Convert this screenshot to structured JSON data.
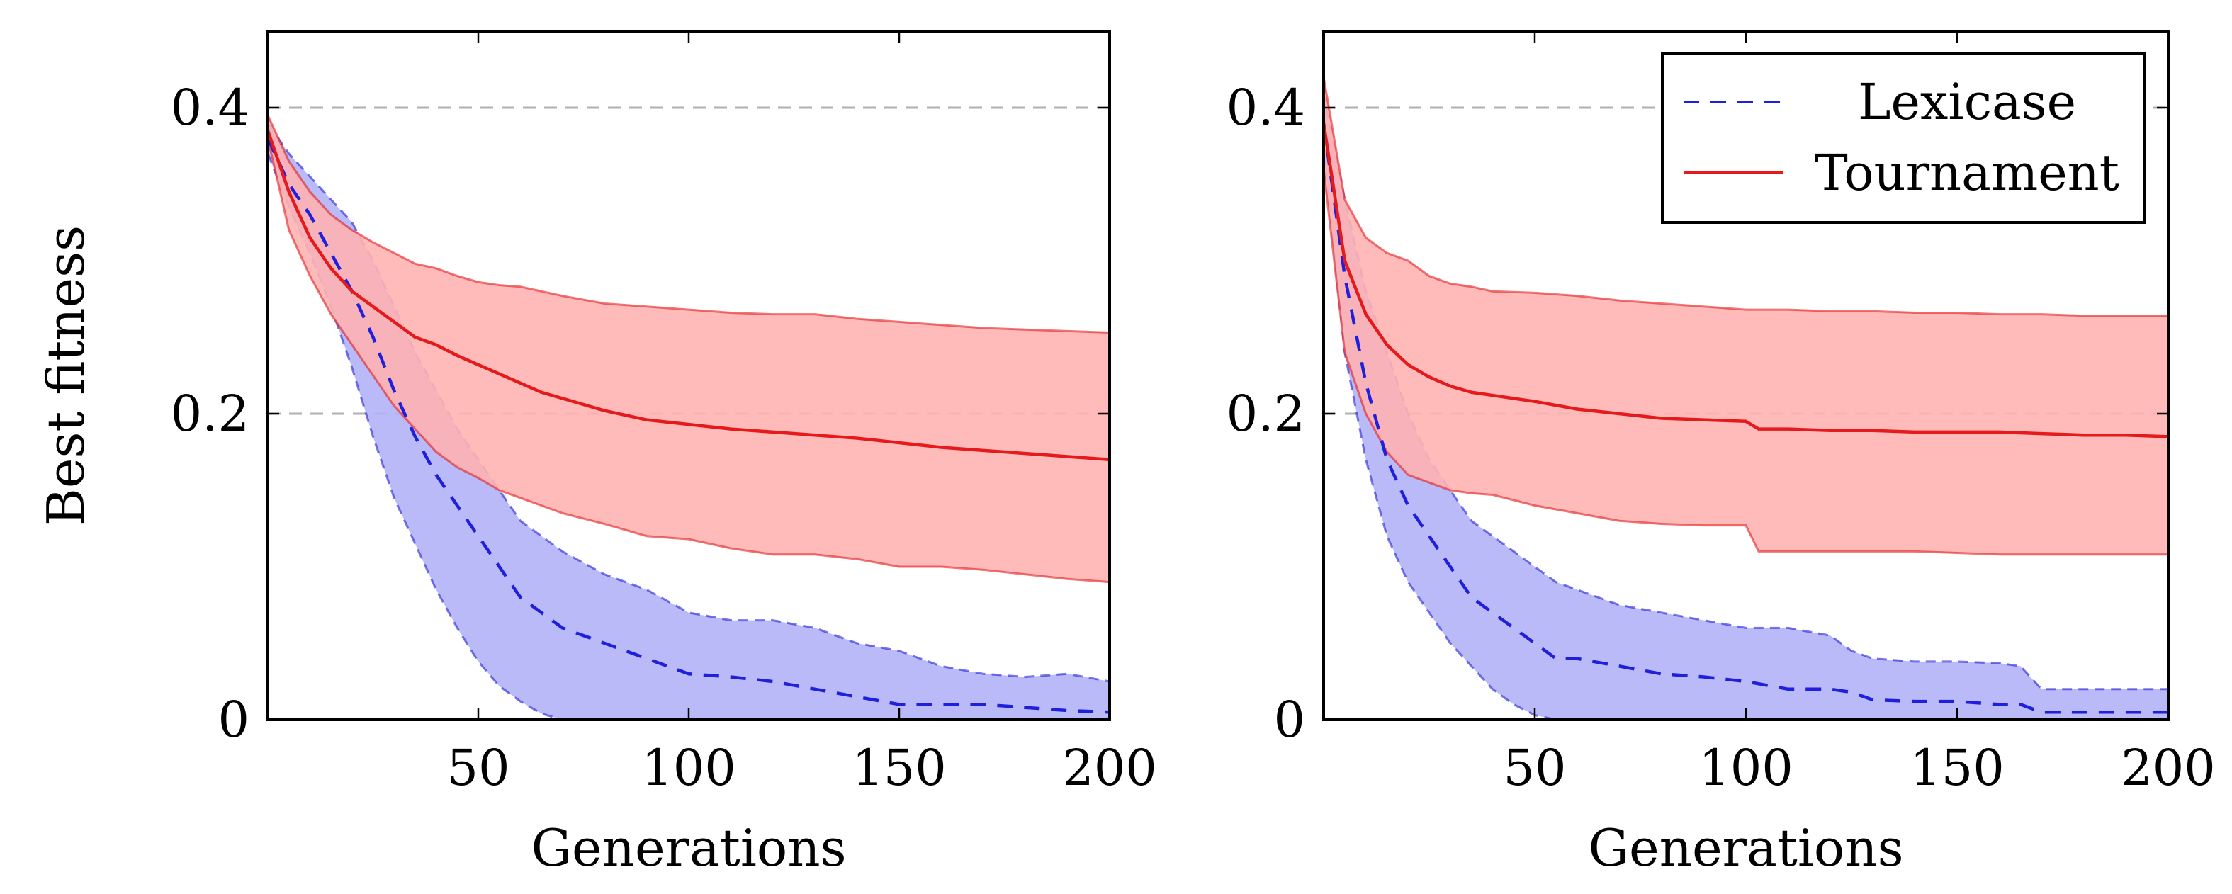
{
  "chart_data": [
    {
      "type": "line",
      "panel": "left",
      "title": "",
      "xlabel": "Generations",
      "ylabel": "Best fitness",
      "xlim": [
        0,
        200
      ],
      "ylim": [
        0,
        0.45
      ],
      "xticks": [
        50,
        100,
        150,
        200
      ],
      "xtick_labels": [
        "50",
        "100",
        "150",
        "200"
      ],
      "yticks": [
        0,
        0.2,
        0.4
      ],
      "ytick_labels": [
        "0",
        "0.2",
        "0.4"
      ],
      "grid": "horizontal dashed at y ticks",
      "legend": "none",
      "series": [
        {
          "name": "Lexicase",
          "color": "#1f1fdc",
          "band_color": "#b3b3f7",
          "style": "dashed",
          "x": [
            0,
            5,
            10,
            15,
            20,
            25,
            30,
            35,
            40,
            45,
            50,
            55,
            60,
            65,
            70,
            80,
            90,
            100,
            110,
            120,
            130,
            140,
            150,
            160,
            170,
            180,
            190,
            200
          ],
          "mean": [
            0.38,
            0.35,
            0.33,
            0.305,
            0.28,
            0.25,
            0.215,
            0.185,
            0.16,
            0.14,
            0.12,
            0.1,
            0.08,
            0.07,
            0.06,
            0.05,
            0.04,
            0.03,
            0.028,
            0.025,
            0.02,
            0.015,
            0.01,
            0.01,
            0.01,
            0.008,
            0.006,
            0.005
          ],
          "lower": [
            0.37,
            0.335,
            0.305,
            0.27,
            0.23,
            0.185,
            0.145,
            0.115,
            0.085,
            0.06,
            0.038,
            0.022,
            0.012,
            0.004,
            0.0,
            0.0,
            0.0,
            0.0,
            0.0,
            0.0,
            0.0,
            0.0,
            0.0,
            0.0,
            0.0,
            0.0,
            0.0,
            0.0
          ],
          "upper": [
            0.39,
            0.37,
            0.355,
            0.34,
            0.325,
            0.3,
            0.27,
            0.24,
            0.215,
            0.19,
            0.17,
            0.15,
            0.13,
            0.12,
            0.11,
            0.095,
            0.085,
            0.07,
            0.065,
            0.065,
            0.06,
            0.05,
            0.045,
            0.035,
            0.03,
            0.028,
            0.03,
            0.025
          ]
        },
        {
          "name": "Tournament",
          "color": "#e41a1c",
          "band_color": "#ffb3b3",
          "style": "solid",
          "x": [
            0,
            5,
            10,
            15,
            20,
            25,
            30,
            35,
            40,
            45,
            50,
            55,
            60,
            65,
            70,
            80,
            90,
            100,
            110,
            120,
            130,
            140,
            150,
            160,
            170,
            180,
            190,
            200
          ],
          "mean": [
            0.385,
            0.345,
            0.315,
            0.295,
            0.28,
            0.27,
            0.26,
            0.25,
            0.245,
            0.238,
            0.232,
            0.226,
            0.22,
            0.214,
            0.21,
            0.202,
            0.196,
            0.193,
            0.19,
            0.188,
            0.186,
            0.184,
            0.181,
            0.178,
            0.176,
            0.174,
            0.172,
            0.17
          ],
          "lower": [
            0.38,
            0.32,
            0.29,
            0.265,
            0.245,
            0.225,
            0.205,
            0.19,
            0.175,
            0.165,
            0.158,
            0.15,
            0.145,
            0.14,
            0.135,
            0.128,
            0.12,
            0.118,
            0.112,
            0.108,
            0.108,
            0.105,
            0.1,
            0.1,
            0.098,
            0.095,
            0.092,
            0.09
          ],
          "upper": [
            0.395,
            0.365,
            0.345,
            0.33,
            0.32,
            0.312,
            0.305,
            0.298,
            0.295,
            0.29,
            0.286,
            0.284,
            0.283,
            0.28,
            0.277,
            0.272,
            0.27,
            0.268,
            0.266,
            0.265,
            0.265,
            0.262,
            0.26,
            0.258,
            0.256,
            0.255,
            0.254,
            0.253
          ]
        }
      ]
    },
    {
      "type": "line",
      "panel": "right",
      "title": "",
      "xlabel": "Generations",
      "ylabel": "",
      "xlim": [
        0,
        200
      ],
      "ylim": [
        0,
        0.45
      ],
      "xticks": [
        50,
        100,
        150,
        200
      ],
      "xtick_labels": [
        "50",
        "100",
        "150",
        "200"
      ],
      "yticks": [
        0,
        0.2,
        0.4
      ],
      "ytick_labels": [
        "0",
        "0.2",
        "0.4"
      ],
      "grid": "horizontal dashed at y ticks",
      "legend": "top-right",
      "series": [
        {
          "name": "Lexicase",
          "color": "#1f1fdc",
          "band_color": "#b3b3f7",
          "style": "dashed",
          "x": [
            0,
            5,
            10,
            15,
            20,
            25,
            30,
            35,
            40,
            45,
            50,
            55,
            60,
            70,
            80,
            90,
            100,
            110,
            120,
            125,
            130,
            140,
            150,
            160,
            165,
            170,
            180,
            190,
            200
          ],
          "mean": [
            0.39,
            0.29,
            0.22,
            0.17,
            0.14,
            0.12,
            0.1,
            0.08,
            0.07,
            0.06,
            0.05,
            0.04,
            0.04,
            0.035,
            0.03,
            0.028,
            0.025,
            0.02,
            0.02,
            0.018,
            0.013,
            0.012,
            0.012,
            0.01,
            0.01,
            0.005,
            0.005,
            0.005,
            0.005
          ],
          "lower": [
            0.37,
            0.24,
            0.17,
            0.12,
            0.09,
            0.07,
            0.05,
            0.035,
            0.02,
            0.01,
            0.003,
            0.0,
            0.0,
            0.0,
            0.0,
            0.0,
            0.0,
            0.0,
            0.0,
            0.0,
            0.0,
            0.0,
            0.0,
            0.0,
            0.0,
            0.0,
            0.0,
            0.0,
            0.0
          ],
          "upper": [
            0.41,
            0.34,
            0.28,
            0.24,
            0.2,
            0.17,
            0.15,
            0.13,
            0.12,
            0.11,
            0.1,
            0.09,
            0.085,
            0.075,
            0.07,
            0.065,
            0.06,
            0.06,
            0.055,
            0.045,
            0.04,
            0.038,
            0.038,
            0.037,
            0.035,
            0.02,
            0.02,
            0.02,
            0.02
          ]
        },
        {
          "name": "Tournament",
          "color": "#e41a1c",
          "band_color": "#ffb3b3",
          "style": "solid",
          "x": [
            0,
            5,
            10,
            15,
            20,
            25,
            30,
            35,
            40,
            50,
            60,
            70,
            80,
            90,
            100,
            103,
            110,
            120,
            130,
            140,
            150,
            160,
            170,
            180,
            190,
            200
          ],
          "mean": [
            0.39,
            0.3,
            0.265,
            0.245,
            0.232,
            0.224,
            0.218,
            0.214,
            0.212,
            0.208,
            0.203,
            0.2,
            0.197,
            0.196,
            0.195,
            0.19,
            0.19,
            0.189,
            0.189,
            0.188,
            0.188,
            0.188,
            0.187,
            0.186,
            0.186,
            0.185
          ],
          "lower": [
            0.36,
            0.24,
            0.2,
            0.175,
            0.16,
            0.155,
            0.15,
            0.148,
            0.147,
            0.14,
            0.135,
            0.13,
            0.128,
            0.127,
            0.127,
            0.11,
            0.11,
            0.11,
            0.11,
            0.11,
            0.109,
            0.108,
            0.108,
            0.108,
            0.108,
            0.108
          ],
          "upper": [
            0.42,
            0.34,
            0.315,
            0.305,
            0.3,
            0.29,
            0.285,
            0.283,
            0.28,
            0.279,
            0.277,
            0.274,
            0.272,
            0.27,
            0.268,
            0.268,
            0.268,
            0.267,
            0.267,
            0.266,
            0.266,
            0.265,
            0.265,
            0.264,
            0.264,
            0.264
          ]
        }
      ]
    }
  ]
}
